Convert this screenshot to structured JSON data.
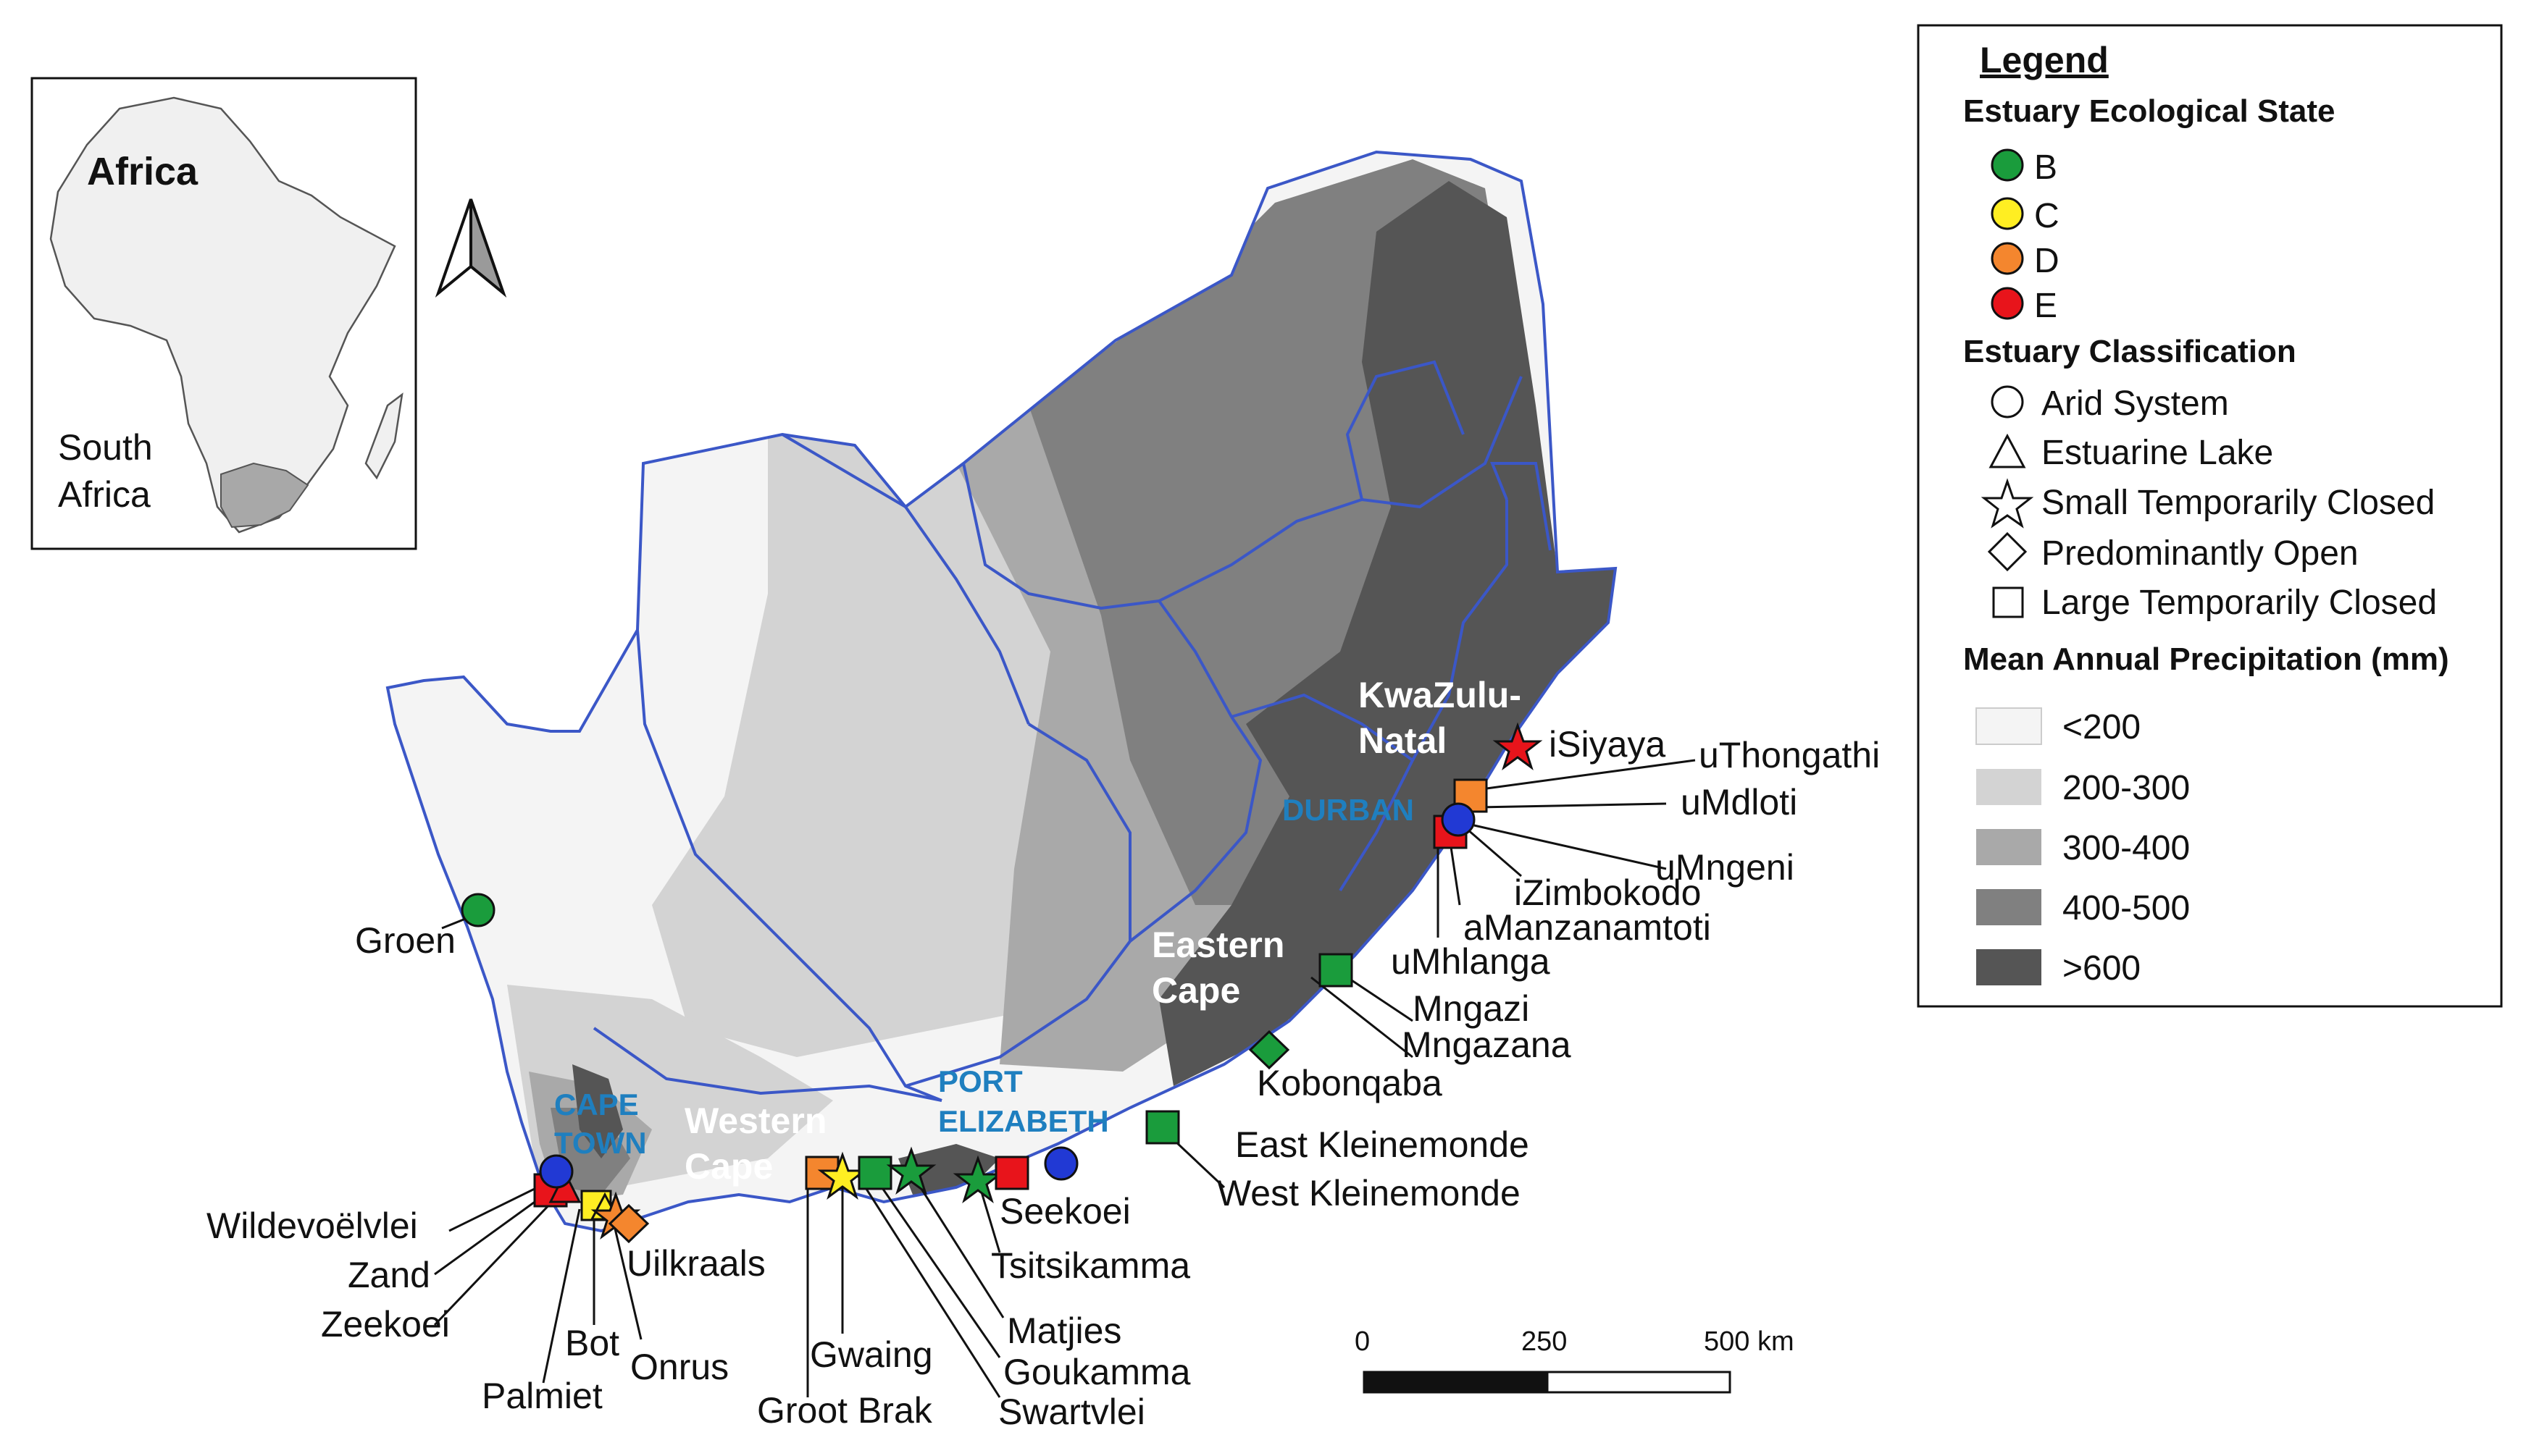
{
  "inset": {
    "title": "Africa",
    "label_line1": "South",
    "label_line2": "Africa"
  },
  "regions": {
    "kzn_line1": "KwaZulu-",
    "kzn_line2": "Natal",
    "ec_line1": "Eastern",
    "ec_line2": "Cape",
    "wc_line1": "Western",
    "wc_line2": "Cape"
  },
  "cities": {
    "durban": "DURBAN",
    "cape_line1": "CAPE",
    "cape_line2": "TOWN",
    "pe_line1": "PORT",
    "pe_line2": "ELIZABETH"
  },
  "estuaries": [
    {
      "name": "Groen",
      "state": "B",
      "class": "arid"
    },
    {
      "name": "Wildevoëlvlei",
      "state": "E",
      "class": "ltc"
    },
    {
      "name": "Zand",
      "state": "E",
      "class": "lake"
    },
    {
      "name": "Zeekoei",
      "state": "E",
      "class": "ltc"
    },
    {
      "name": "Palmiet",
      "state": "C",
      "class": "ltc"
    },
    {
      "name": "Bot",
      "state": "C",
      "class": "lake"
    },
    {
      "name": "Onrus",
      "state": "D",
      "class": "stc"
    },
    {
      "name": "Uilkraals",
      "state": "D",
      "class": "open"
    },
    {
      "name": "Groot Brak",
      "state": "D",
      "class": "ltc"
    },
    {
      "name": "Gwaing",
      "state": "C",
      "class": "stc"
    },
    {
      "name": "Swartvlei",
      "state": "B",
      "class": "lake"
    },
    {
      "name": "Goukamma",
      "state": "B",
      "class": "ltc"
    },
    {
      "name": "Matjies",
      "state": "B",
      "class": "stc"
    },
    {
      "name": "Tsitsikamma",
      "state": "B",
      "class": "stc"
    },
    {
      "name": "Seekoei",
      "state": "E",
      "class": "ltc"
    },
    {
      "name": "West Kleinemonde",
      "state": "B",
      "class": "ltc"
    },
    {
      "name": "East Kleinemonde",
      "state": "B",
      "class": "ltc"
    },
    {
      "name": "Kobonqaba",
      "state": "B",
      "class": "open"
    },
    {
      "name": "Mngazana",
      "state": "B",
      "class": "ltc"
    },
    {
      "name": "Mngazi",
      "state": "B",
      "class": "ltc"
    },
    {
      "name": "uMhlanga",
      "state": "E",
      "class": "ltc"
    },
    {
      "name": "aManzanamtoti",
      "state": "E",
      "class": "ltc"
    },
    {
      "name": "iZimbokodo",
      "state": "E",
      "class": "ltc"
    },
    {
      "name": "uMngeni",
      "state": "E",
      "class": "arid"
    },
    {
      "name": "uMdloti",
      "state": "D",
      "class": "ltc"
    },
    {
      "name": "uThongathi",
      "state": "D",
      "class": "ltc"
    },
    {
      "name": "iSiyaya",
      "state": "E",
      "class": "stc"
    }
  ],
  "legend": {
    "title": "Legend",
    "state_heading": "Estuary Ecological State",
    "states": [
      {
        "label": "B",
        "color": "#1a9c3c"
      },
      {
        "label": "C",
        "color": "#ffee22"
      },
      {
        "label": "D",
        "color": "#f4862e"
      },
      {
        "label": "E",
        "color": "#e8141b"
      }
    ],
    "class_heading": "Estuary Classification",
    "classes": [
      {
        "label": "Arid System",
        "shape": "circle-icon"
      },
      {
        "label": "Estuarine Lake",
        "shape": "triangle-icon"
      },
      {
        "label": "Small Temporarily Closed",
        "shape": "star-icon"
      },
      {
        "label": "Predominantly Open",
        "shape": "diamond-icon"
      },
      {
        "label": "Large Temporarily Closed",
        "shape": "square-icon"
      }
    ],
    "precip_heading": "Mean Annual Precipitation (mm)",
    "precip": [
      {
        "label": "<200",
        "color": "#f4f4f4"
      },
      {
        "label": "200-300",
        "color": "#d3d3d3"
      },
      {
        "label": "300-400",
        "color": "#a9a9a9"
      },
      {
        "label": "400-500",
        "color": "#808080"
      },
      {
        "label": ">600",
        "color": "#555555"
      }
    ]
  },
  "scale_bar": {
    "ticks": [
      "0",
      "250",
      "500 km"
    ]
  },
  "colors": {
    "province_border": "#3b57c7",
    "city_label": "#1f7fbf"
  }
}
